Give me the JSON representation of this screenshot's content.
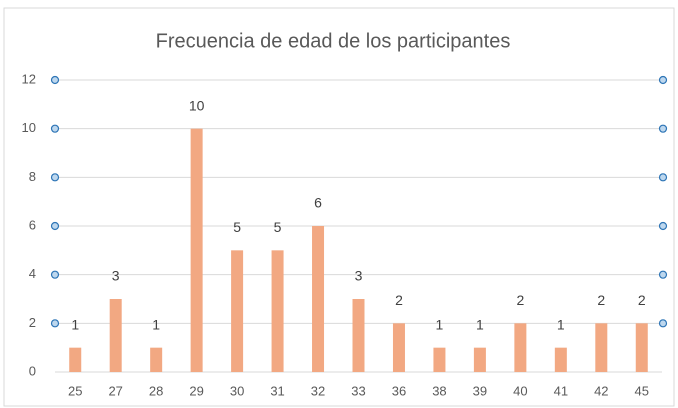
{
  "chart_data": {
    "type": "bar",
    "title": "Frecuencia de edad de los participantes",
    "categories": [
      "25",
      "27",
      "28",
      "29",
      "30",
      "31",
      "32",
      "33",
      "36",
      "38",
      "39",
      "40",
      "41",
      "42",
      "45"
    ],
    "values": [
      1,
      3,
      1,
      10,
      5,
      5,
      6,
      3,
      2,
      1,
      1,
      2,
      1,
      2,
      2
    ],
    "color": "#f2a882",
    "ylim": [
      0,
      12
    ],
    "yticks": [
      0,
      2,
      4,
      6,
      8,
      10,
      12
    ],
    "grid": true
  }
}
